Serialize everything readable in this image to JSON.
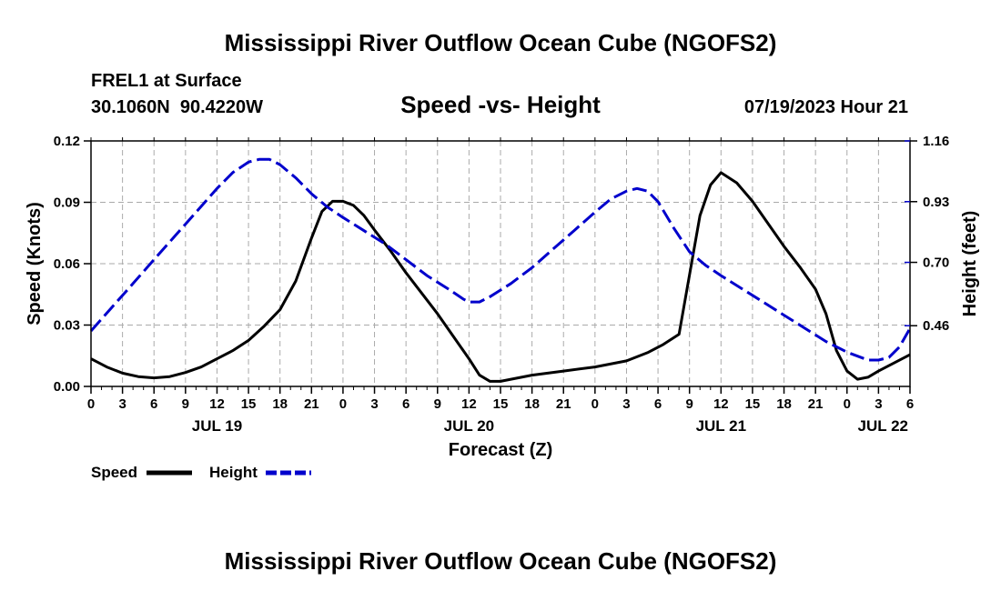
{
  "title": "Mississippi River Outflow Ocean Cube (NGOFS2)",
  "footer_title": "Mississippi River Outflow Ocean Cube (NGOFS2)",
  "station": {
    "name": "FREL1 at Surface",
    "coords": "30.1060N  90.4220W",
    "timestamp": "07/19/2023 Hour 21"
  },
  "colors": {
    "speed": "#000000",
    "height": "#0000cc",
    "grid": "#aaaaaa"
  },
  "chart_data": {
    "type": "line",
    "title": "Speed -vs- Height",
    "xlabel": "Forecast (Z)",
    "ylabel": "Speed (Knots)",
    "y2label": "Height (feet)",
    "xlim": [
      0,
      78
    ],
    "ylim": [
      0,
      0.12
    ],
    "y2lim": [
      0.23,
      1.16
    ],
    "x_ticks": [
      0,
      3,
      6,
      9,
      12,
      15,
      18,
      21,
      24,
      27,
      30,
      33,
      36,
      39,
      42,
      45,
      48,
      51,
      54,
      57,
      60,
      63,
      66,
      69,
      72,
      75,
      78
    ],
    "x_tick_labels": [
      "0",
      "3",
      "6",
      "9",
      "12",
      "15",
      "18",
      "21",
      "0",
      "3",
      "6",
      "9",
      "12",
      "15",
      "18",
      "21",
      "0",
      "3",
      "6",
      "9",
      "12",
      "15",
      "18",
      "21",
      "0",
      "3",
      "6"
    ],
    "date_labels": [
      {
        "x": 12,
        "label": "JUL 19"
      },
      {
        "x": 36,
        "label": "JUL 20"
      },
      {
        "x": 60,
        "label": "JUL 21"
      },
      {
        "x": 78,
        "label": "JUL 22"
      }
    ],
    "y_ticks": [
      0,
      0.03,
      0.06,
      0.09,
      0.12
    ],
    "y_tick_labels": [
      "0.00",
      "0.03",
      "0.06",
      "0.09",
      "0.12"
    ],
    "y2_ticks": [
      0.46,
      0.7,
      0.93,
      1.16
    ],
    "y2_tick_labels": [
      "0.46",
      "0.70",
      "0.93",
      "1.16"
    ],
    "legend": [
      {
        "name": "Speed",
        "style": "solid"
      },
      {
        "name": "Height",
        "style": "dashed"
      }
    ],
    "series": [
      {
        "name": "Speed",
        "axis": "left",
        "x": [
          0,
          1.5,
          3,
          4.5,
          6,
          7.5,
          9,
          10.5,
          12,
          13.5,
          15,
          16.5,
          18,
          19.5,
          21,
          22,
          23,
          24,
          25,
          26,
          27,
          28.5,
          30,
          31.5,
          33,
          34.5,
          36,
          37,
          38,
          39,
          40,
          42,
          45,
          48,
          51,
          53,
          54.5,
          56,
          57,
          58,
          59,
          60,
          61.5,
          63,
          64.5,
          66,
          67.5,
          69,
          70,
          71,
          72,
          73,
          74,
          75,
          76.5,
          78
        ],
        "values": [
          0.0135,
          0.0095,
          0.0065,
          0.0048,
          0.0042,
          0.0048,
          0.0068,
          0.0095,
          0.0135,
          0.0175,
          0.0225,
          0.0295,
          0.0375,
          0.0515,
          0.0725,
          0.0855,
          0.0905,
          0.0905,
          0.0885,
          0.0835,
          0.0765,
          0.0665,
          0.0555,
          0.0455,
          0.0355,
          0.0245,
          0.0135,
          0.0055,
          0.0025,
          0.0025,
          0.0035,
          0.0055,
          0.0075,
          0.0095,
          0.0125,
          0.0165,
          0.0205,
          0.0255,
          0.0545,
          0.0835,
          0.0985,
          0.1045,
          0.0995,
          0.0905,
          0.0795,
          0.0685,
          0.0585,
          0.0475,
          0.0355,
          0.0175,
          0.0075,
          0.0035,
          0.0045,
          0.0075,
          0.0115,
          0.0155
        ]
      },
      {
        "name": "Height",
        "axis": "right",
        "x": [
          0,
          2,
          4,
          6,
          8,
          10,
          12,
          13.5,
          15,
          16,
          17,
          18,
          19.5,
          21,
          22.5,
          24,
          26,
          28,
          30,
          32,
          34,
          35.5,
          36,
          37,
          38,
          40,
          42,
          44,
          46,
          48,
          49.5,
          51,
          52,
          53,
          54,
          55.5,
          57,
          58.5,
          60,
          62,
          64,
          66,
          68,
          70,
          72,
          74,
          75,
          76,
          77,
          78
        ],
        "values": [
          0.44,
          0.53,
          0.62,
          0.71,
          0.8,
          0.89,
          0.98,
          1.04,
          1.08,
          1.09,
          1.09,
          1.07,
          1.02,
          0.96,
          0.91,
          0.87,
          0.82,
          0.77,
          0.71,
          0.65,
          0.6,
          0.56,
          0.55,
          0.55,
          0.57,
          0.62,
          0.68,
          0.75,
          0.82,
          0.89,
          0.94,
          0.97,
          0.98,
          0.97,
          0.93,
          0.83,
          0.74,
          0.69,
          0.65,
          0.6,
          0.55,
          0.5,
          0.45,
          0.4,
          0.36,
          0.33,
          0.33,
          0.34,
          0.38,
          0.45
        ]
      }
    ]
  }
}
